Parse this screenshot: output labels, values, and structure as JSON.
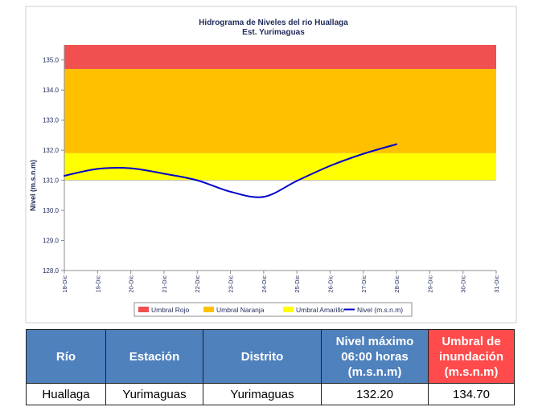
{
  "chart_data": {
    "type": "line",
    "title": "Hidrograma de Niveles del rio Huallaga",
    "subtitle": "Est. Yurimaguas",
    "ylabel": "Nivel (m.s.n.m)",
    "xlabel": "",
    "ylim": [
      128.0,
      135.5
    ],
    "yticks": [
      "128.0",
      "129.0",
      "130.0",
      "131.0",
      "132.0",
      "133.0",
      "134.0",
      "135.0"
    ],
    "categories": [
      "18-Dic",
      "19-Dic",
      "20-Dic",
      "21-Dic",
      "22-Dic",
      "23-Dic",
      "24-Dic",
      "25-Dic",
      "26-Dic",
      "27-Dic",
      "28-Dic",
      "29-Dic",
      "30-Dic",
      "31-Dic"
    ],
    "grid": false,
    "legend_position": "bottom",
    "bands": [
      {
        "name": "Umbral Rojo",
        "from": 134.7,
        "to": 135.5,
        "color": "#f05050"
      },
      {
        "name": "Umbral Naranja",
        "from": 131.9,
        "to": 134.7,
        "color": "#ffc000"
      },
      {
        "name": "Umbral Amarillo",
        "from": 131.0,
        "to": 131.9,
        "color": "#ffff00"
      }
    ],
    "series": [
      {
        "name": "Nivel (m.s.n.m)",
        "color": "#0000cc",
        "x": [
          "18-Dic",
          "19-Dic",
          "20-Dic",
          "21-Dic",
          "22-Dic",
          "23-Dic",
          "24-Dic",
          "25-Dic",
          "26-Dic",
          "27-Dic",
          "28-Dic"
        ],
        "values": [
          131.15,
          131.38,
          131.4,
          131.22,
          131.0,
          130.62,
          130.45,
          130.98,
          131.48,
          131.88,
          132.2
        ]
      }
    ]
  },
  "table": {
    "headers": [
      "Río",
      "Estación",
      "Distrito",
      "Nivel máximo 06:00 horas (m.s.n.m)",
      "Umbral de inundación (m.s.n.m)"
    ],
    "row": [
      "Huallaga",
      "Yurimaguas",
      "Yurimaguas",
      "132.20",
      "134.70"
    ]
  }
}
